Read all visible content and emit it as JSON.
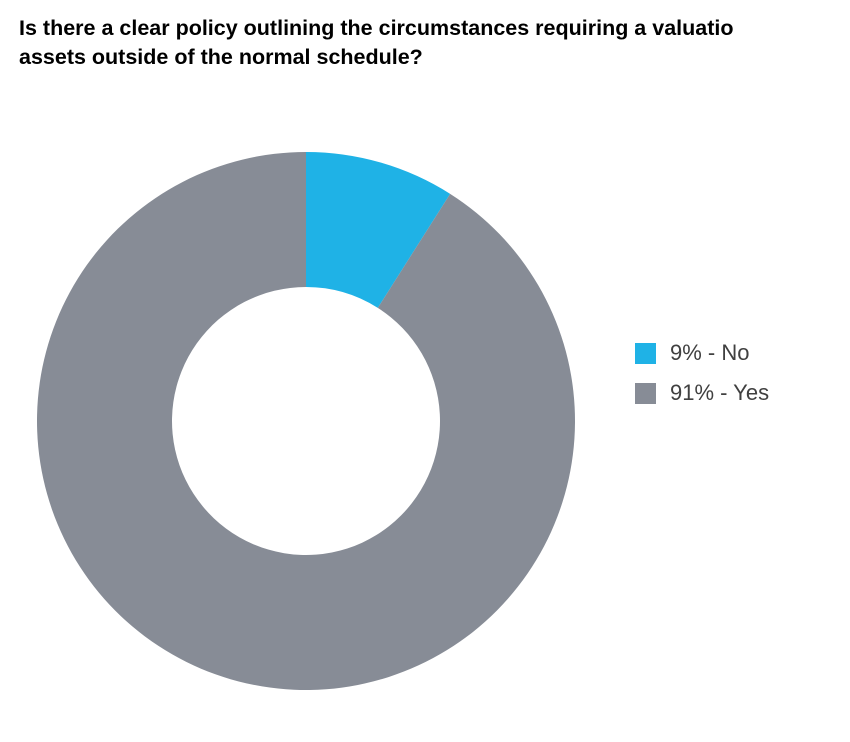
{
  "chart_data": {
    "type": "pie",
    "title_lines": [
      "Is there a clear policy outlining the circumstances requiring a valuatio",
      "assets outside of the normal schedule?"
    ],
    "donut": true,
    "slices": [
      {
        "label": "9% - No",
        "value": 9,
        "color": "#1fb2e6"
      },
      {
        "label": "91% - Yes",
        "value": 91,
        "color": "#878c96"
      }
    ],
    "legend_position": "right"
  }
}
